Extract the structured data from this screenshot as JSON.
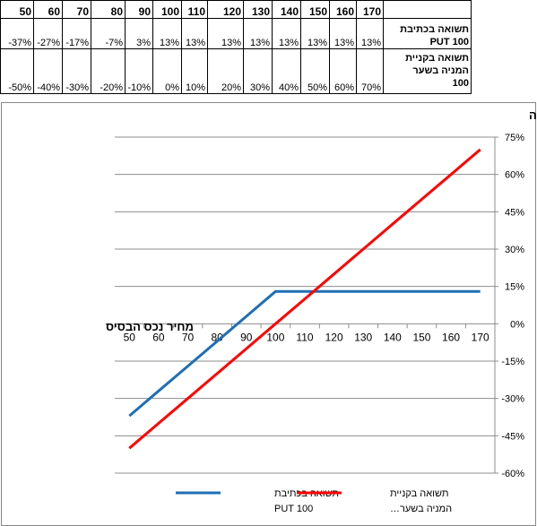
{
  "table": {
    "prices": [
      "50",
      "60",
      "70",
      "80",
      "90",
      "100",
      "110",
      "120",
      "130",
      "140",
      "150",
      "160",
      "170"
    ],
    "rows": [
      {
        "label_lines": [
          "תשואה בכתיבת",
          "PUT 100"
        ],
        "values": [
          "-37%",
          "-27%",
          "-17%",
          "-7%",
          "3%",
          "13%",
          "13%",
          "13%",
          "13%",
          "13%",
          "13%",
          "13%",
          "13%"
        ]
      },
      {
        "label_lines": [
          "תשואה בקניית",
          "המניה בשער",
          "100"
        ],
        "values": [
          "-50%",
          "-40%",
          "-30%",
          "-20%",
          "-10%",
          "0%",
          "10%",
          "20%",
          "30%",
          "40%",
          "50%",
          "60%",
          "70%"
        ]
      }
    ]
  },
  "chart_data": {
    "type": "line",
    "ylabel": "תשואה",
    "xlabel": "מחיר נכס הבסיס",
    "x": [
      50,
      60,
      70,
      80,
      90,
      100,
      110,
      120,
      130,
      140,
      150,
      160,
      170
    ],
    "ylim": [
      -60,
      75
    ],
    "yticks": [
      75,
      60,
      45,
      30,
      15,
      0,
      -15,
      -30,
      -45,
      -60
    ],
    "ytick_labels": [
      "75%",
      "60%",
      "45%",
      "30%",
      "15%",
      "0%",
      "-15%",
      "-30%",
      "-45%",
      "-60%"
    ],
    "grid": true,
    "legend_position": "bottom",
    "series": [
      {
        "name_lines": [
          "תשואה בכתיבת",
          "PUT 100"
        ],
        "color": "#1f6fb5",
        "values": [
          -37,
          -27,
          -17,
          -7,
          3,
          13,
          13,
          13,
          13,
          13,
          13,
          13,
          13
        ]
      },
      {
        "name_lines": [
          "תשואה בקניית",
          "המניה בשער…"
        ],
        "color": "#ff0000",
        "values": [
          -50,
          -40,
          -30,
          -20,
          -10,
          0,
          10,
          20,
          30,
          40,
          50,
          60,
          70
        ]
      }
    ]
  }
}
